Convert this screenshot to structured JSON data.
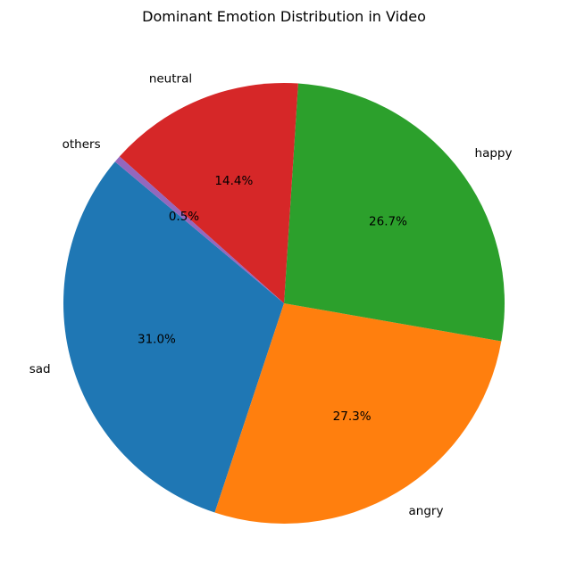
{
  "chart_data": {
    "type": "pie",
    "title": "Dominant Emotion Distribution in Video",
    "start_angle_deg": 140,
    "direction": "counterclockwise",
    "slices": [
      {
        "label": "sad",
        "value": 31.0,
        "display": "31.0%",
        "color": "#1f77b4"
      },
      {
        "label": "angry",
        "value": 27.3,
        "display": "27.3%",
        "color": "#ff7f0e"
      },
      {
        "label": "happy",
        "value": 26.7,
        "display": "26.7%",
        "color": "#2ca02c"
      },
      {
        "label": "neutral",
        "value": 14.4,
        "display": "14.4%",
        "color": "#d62728"
      },
      {
        "label": "others",
        "value": 0.5,
        "display": "0.5%",
        "color": "#9467bd"
      }
    ]
  }
}
